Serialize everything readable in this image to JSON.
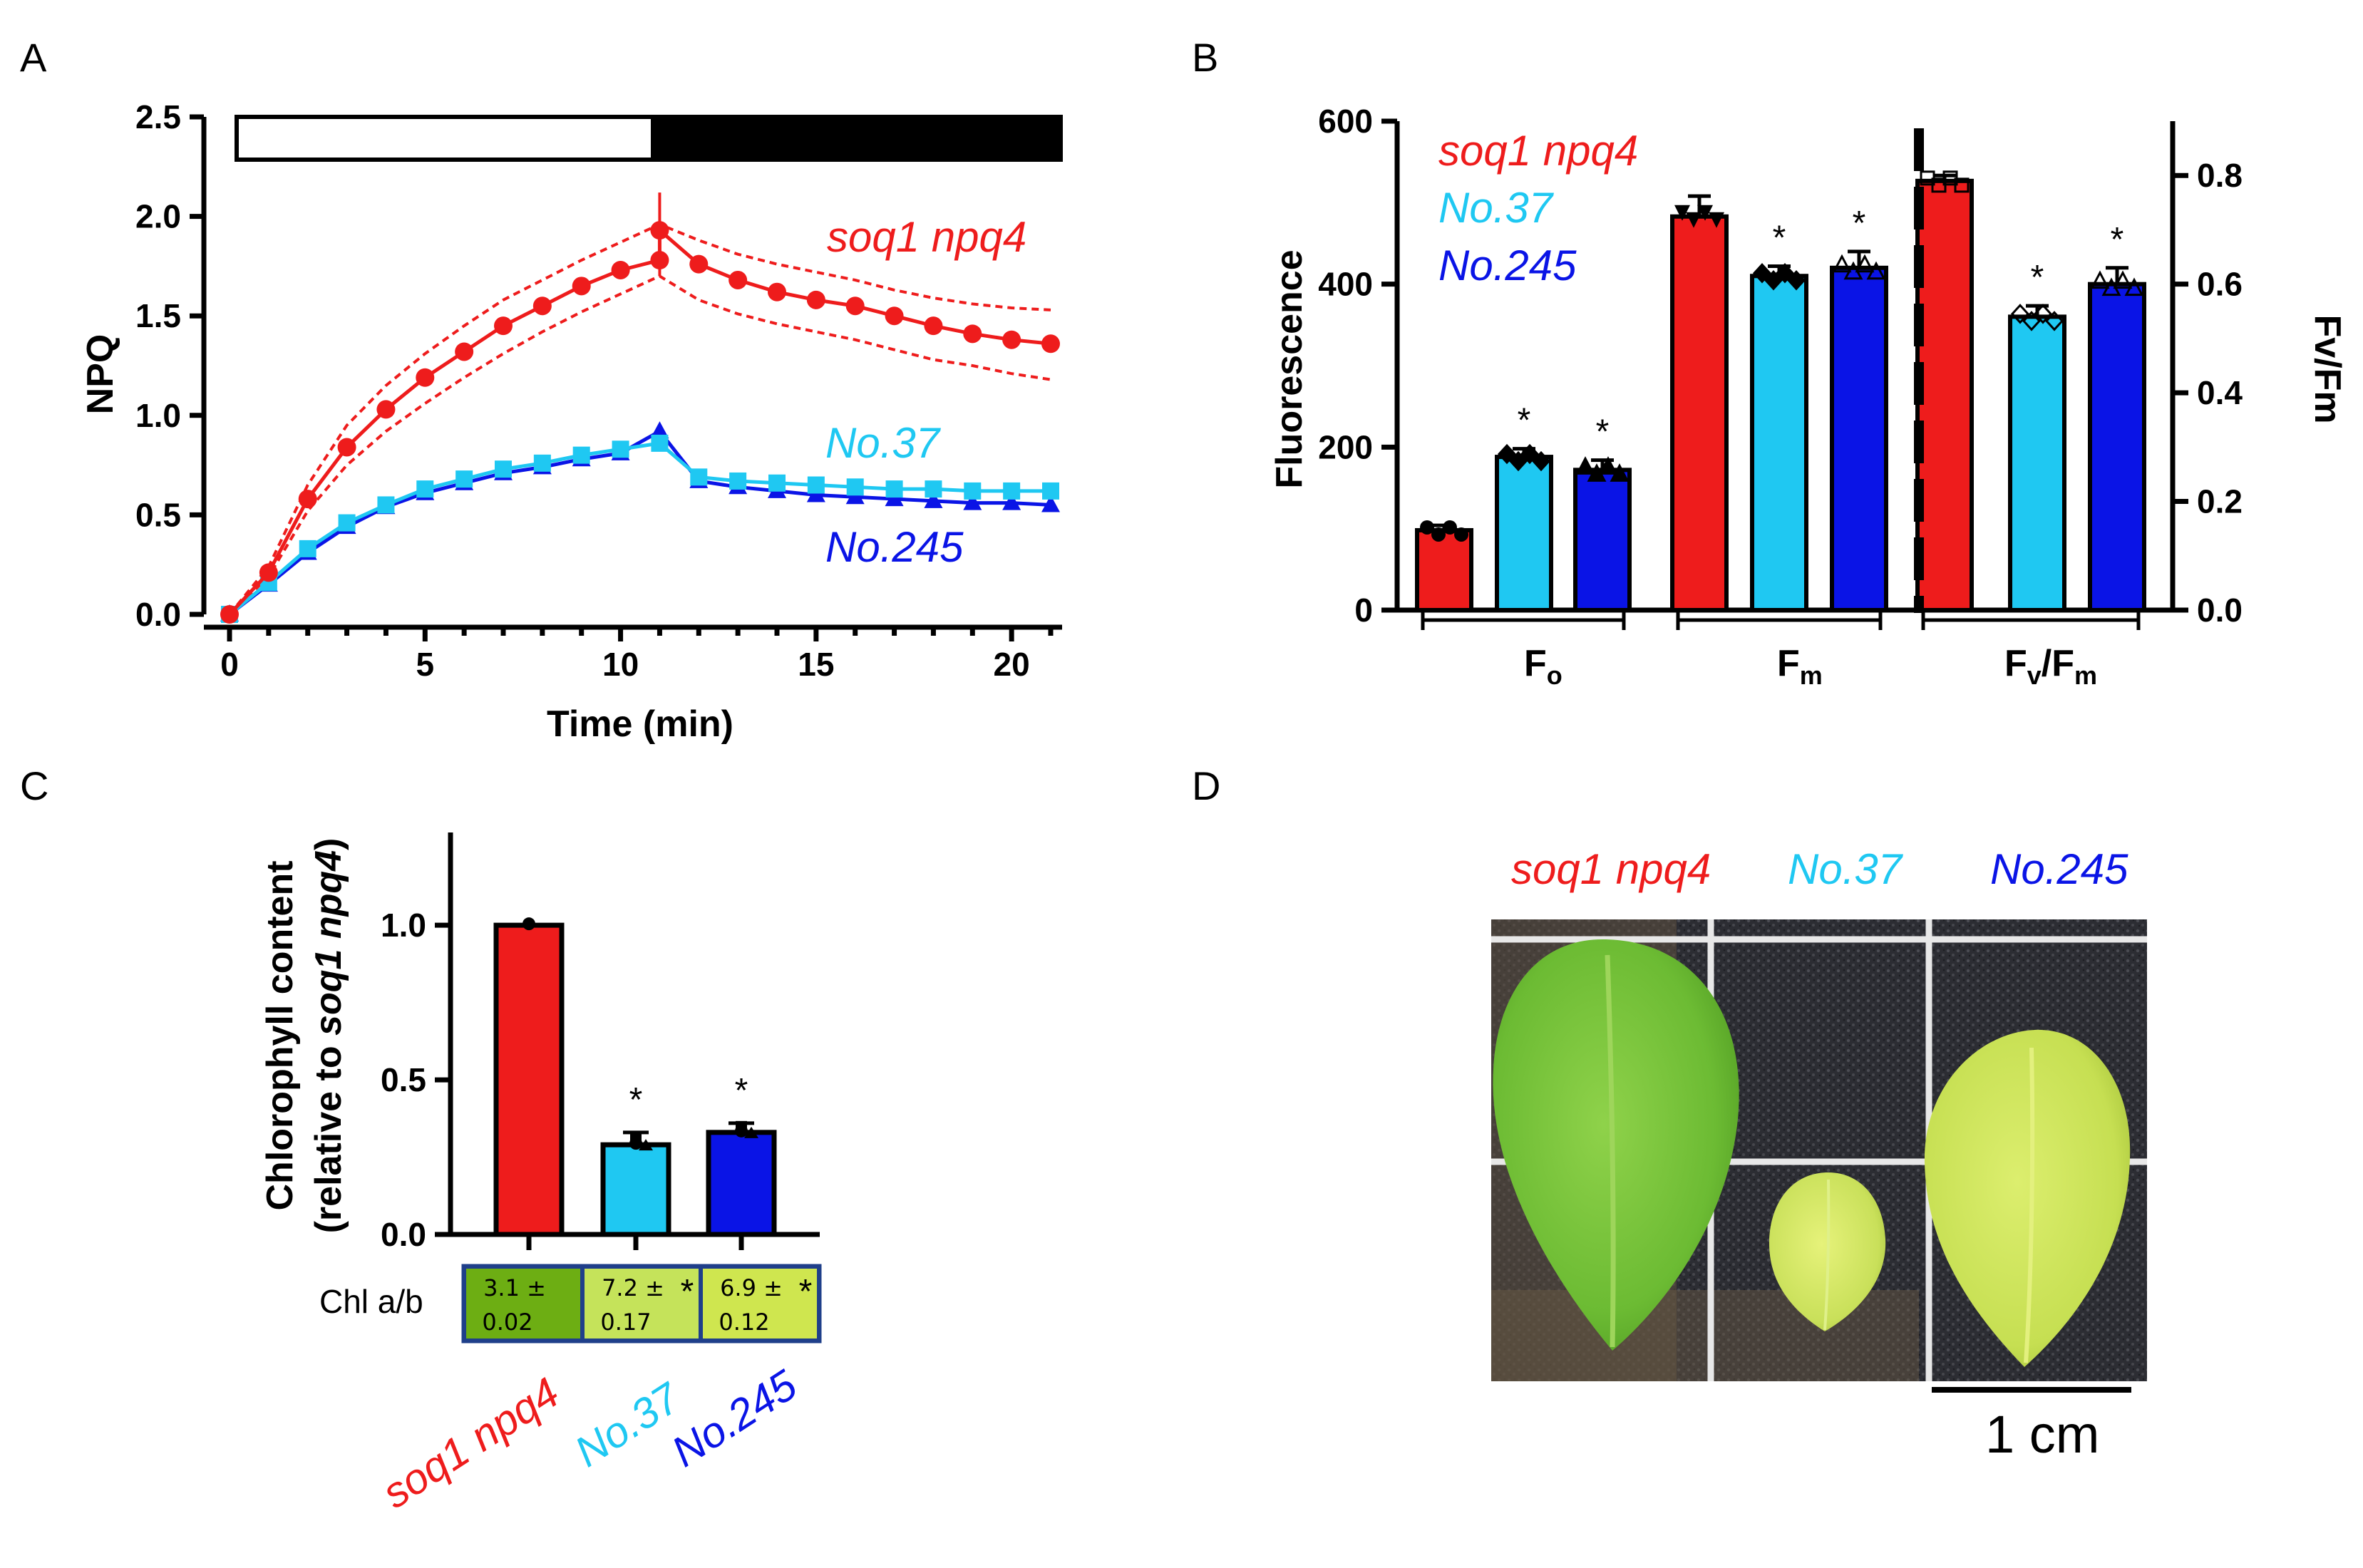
{
  "panels": [
    "A",
    "B",
    "C",
    "D"
  ],
  "colors": {
    "soq1": "#ee1c1c",
    "no37": "#1fc8f2",
    "no245": "#0a14e6",
    "black": "#000000"
  },
  "chart_data": [
    {
      "id": "A",
      "type": "line",
      "xlabel": "Time (min)",
      "ylabel": "NPQ",
      "xticks": [
        "0",
        "5",
        "10",
        "15",
        "20"
      ],
      "yticks": [
        "0.0",
        "0.5",
        "1.0",
        "1.5",
        "2.0",
        "2.5"
      ],
      "xlim": [
        0,
        21
      ],
      "ylim": [
        0,
        2.5
      ],
      "light_dark_bar": {
        "light_minutes": [
          0,
          11
        ],
        "dark_minutes": [
          11,
          21.5
        ]
      },
      "series": [
        {
          "name": "soq1 npq4",
          "color": "#ee1c1c",
          "x": [
            0,
            1,
            2,
            3,
            4,
            5,
            6,
            7,
            8,
            9,
            10,
            11,
            11,
            12,
            13,
            14,
            15,
            16,
            17,
            18,
            19,
            20,
            21
          ],
          "y": [
            0,
            0.21,
            0.58,
            0.84,
            1.03,
            1.19,
            1.32,
            1.45,
            1.55,
            1.65,
            1.73,
            1.78,
            1.93,
            1.76,
            1.68,
            1.62,
            1.58,
            1.55,
            1.5,
            1.45,
            1.41,
            1.38,
            1.36
          ],
          "upper": [
            0,
            0.24,
            0.65,
            0.95,
            1.15,
            1.31,
            1.45,
            1.58,
            1.68,
            1.78,
            1.87,
            1.96,
            1.96,
            1.88,
            1.81,
            1.76,
            1.72,
            1.68,
            1.63,
            1.59,
            1.56,
            1.54,
            1.53
          ],
          "lower": [
            0,
            0.19,
            0.52,
            0.75,
            0.92,
            1.06,
            1.19,
            1.31,
            1.42,
            1.52,
            1.61,
            1.7,
            1.7,
            1.58,
            1.51,
            1.46,
            1.42,
            1.38,
            1.33,
            1.28,
            1.25,
            1.21,
            1.18
          ]
        },
        {
          "name": "No.37",
          "color": "#1fc8f2",
          "x": [
            0,
            1,
            2,
            3,
            4,
            5,
            6,
            7,
            8,
            9,
            10,
            11,
            12,
            13,
            14,
            15,
            16,
            17,
            18,
            19,
            20,
            21
          ],
          "y": [
            0,
            0.16,
            0.33,
            0.46,
            0.55,
            0.63,
            0.68,
            0.73,
            0.76,
            0.8,
            0.83,
            0.86,
            0.69,
            0.67,
            0.66,
            0.65,
            0.64,
            0.63,
            0.63,
            0.62,
            0.62,
            0.62
          ]
        },
        {
          "name": "No.245",
          "color": "#0a14e6",
          "x": [
            0,
            1,
            2,
            3,
            4,
            5,
            6,
            7,
            8,
            9,
            10,
            11,
            12,
            13,
            14,
            15,
            16,
            17,
            18,
            19,
            20,
            21
          ],
          "y": [
            0,
            0.15,
            0.31,
            0.44,
            0.54,
            0.61,
            0.66,
            0.71,
            0.74,
            0.78,
            0.81,
            0.92,
            0.67,
            0.64,
            0.62,
            0.6,
            0.59,
            0.58,
            0.57,
            0.56,
            0.56,
            0.55
          ]
        }
      ]
    },
    {
      "id": "B",
      "type": "bar",
      "ylabel": "Fluorescence",
      "y2label": "Fv/Fm",
      "yticks": [
        "0",
        "200",
        "400",
        "600"
      ],
      "y2ticks": [
        "0.0",
        "0.2",
        "0.4",
        "0.6",
        "0.8"
      ],
      "ylim": [
        0,
        600
      ],
      "y2lim": [
        0,
        0.9
      ],
      "groups": [
        {
          "label": "F",
          "sub": "o",
          "axis": "left",
          "values": [
            98,
            188,
            172
          ],
          "errors": [
            6,
            10,
            12
          ],
          "significant": [
            false,
            true,
            true
          ]
        },
        {
          "label": "F",
          "sub": "m",
          "axis": "left",
          "values": [
            483,
            410,
            420
          ],
          "errors": [
            25,
            12,
            20
          ],
          "significant": [
            false,
            true,
            true
          ]
        },
        {
          "label": "F",
          "sub": "v",
          "suffix": "/F",
          "suffix_sub": "m",
          "axis": "right",
          "values": [
            0.79,
            0.54,
            0.6
          ],
          "errors": [
            0.01,
            0.02,
            0.03
          ],
          "significant": [
            false,
            true,
            true
          ]
        }
      ],
      "legend": [
        "soq1 npq4",
        "No.37",
        "No.245"
      ],
      "legend_position": "top-left"
    },
    {
      "id": "C",
      "type": "bar",
      "ylabel_line1": "Chlorophyll content",
      "ylabel_line2_prefix": "(relative to ",
      "ylabel_line2_italic": "soq1 npq4",
      "ylabel_line2_suffix": ")",
      "yticks": [
        "0.0",
        "0.5",
        "1.0"
      ],
      "ylim": [
        0,
        1.3
      ],
      "categories": [
        "soq1 npq4",
        "No.37",
        "No.245"
      ],
      "values": [
        1.0,
        0.29,
        0.33
      ],
      "errors": [
        0.0,
        0.04,
        0.03
      ],
      "significant": [
        false,
        true,
        true
      ],
      "chl_ab_label": "Chl a/b",
      "chl_ab": [
        {
          "mean": "3.1 ±",
          "sd": "0.02",
          "star": "",
          "fill": "#6dae13"
        },
        {
          "mean": "7.2 ±",
          "sd": "0.17",
          "star": "*",
          "fill": "#c5e35a"
        },
        {
          "mean": "6.9 ±",
          "sd": "0.12",
          "star": "*",
          "fill": "#cfe64f"
        }
      ]
    }
  ],
  "panel_d": {
    "labels": [
      "soq1 npq4",
      "No.37",
      "No.245"
    ],
    "scale_label": "1 cm"
  },
  "star_symbol": "*"
}
